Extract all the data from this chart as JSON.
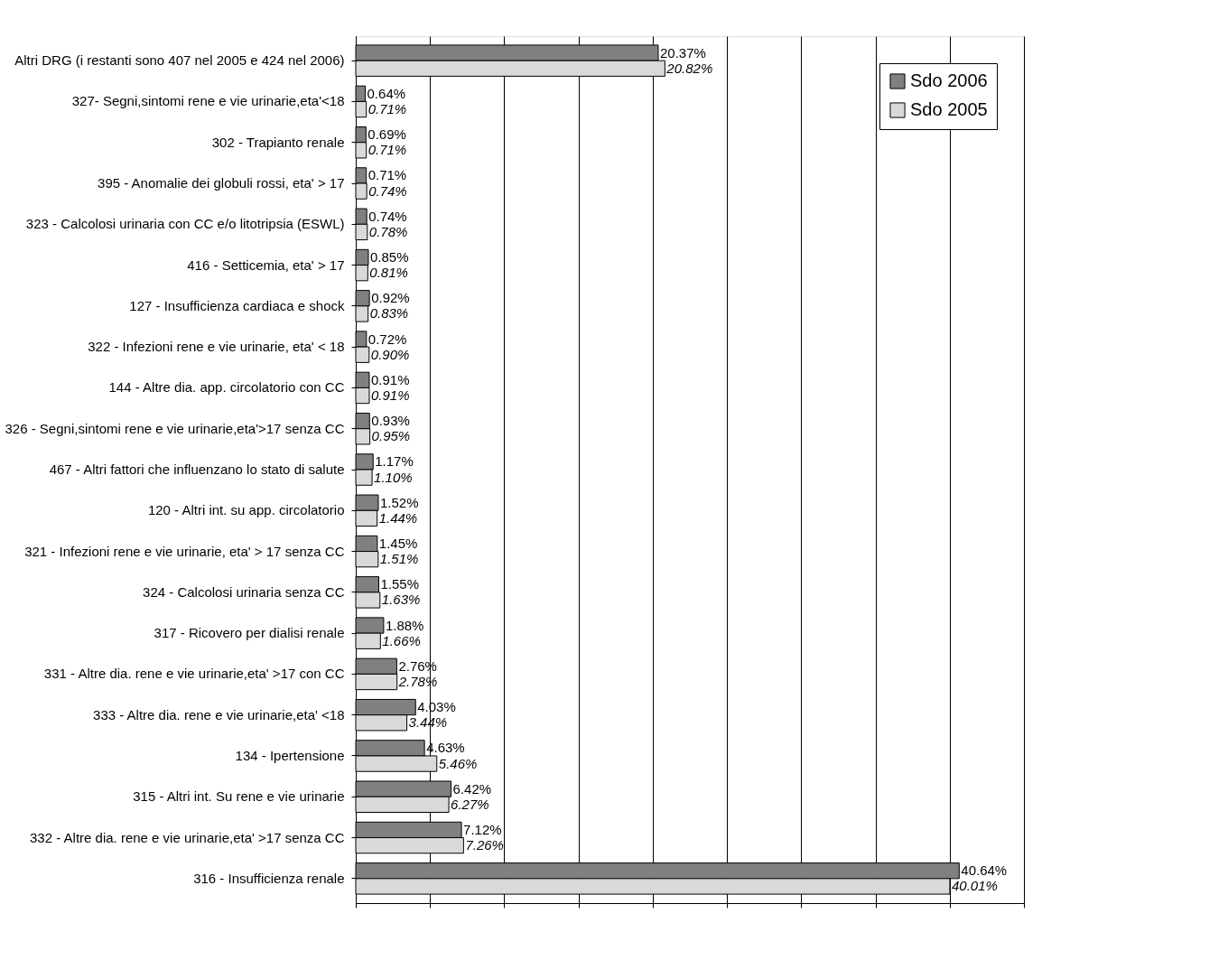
{
  "chart_data": {
    "type": "bar",
    "orientation": "horizontal",
    "categories": [
      "Altri DRG (i restanti sono 407 nel 2005 e 424 nel 2006)",
      "327- Segni,sintomi rene e vie urinarie,eta'<18",
      "302 - Trapianto renale",
      "395 - Anomalie dei globuli rossi, eta' > 17",
      "323 - Calcolosi urinaria con CC e/o litotripsia (ESWL)",
      "416 - Setticemia, eta' > 17",
      "127 - Insufficienza cardiaca e shock",
      "322 - Infezioni rene e vie urinarie, eta' < 18",
      "144 - Altre dia. app. circolatorio con CC",
      "326 - Segni,sintomi rene e vie urinarie,eta'>17 senza CC",
      "467 - Altri fattori che influenzano lo stato di salute",
      "120 - Altri int. su app. circolatorio",
      "321 - Infezioni rene e vie urinarie, eta' > 17 senza CC",
      "324 - Calcolosi urinaria senza CC",
      "317 - Ricovero per dialisi renale",
      "331 - Altre dia. rene e vie urinarie,eta' >17 con CC",
      "333 - Altre dia. rene e vie urinarie,eta' <18",
      "134 - Ipertensione",
      "315 - Altri int. Su rene e vie urinarie",
      "332 - Altre dia. rene e vie urinarie,eta' >17 senza CC",
      "316 - Insufficienza renale"
    ],
    "series": [
      {
        "name": "Sdo 2006",
        "color": "#808080",
        "values": [
          20.37,
          0.64,
          0.69,
          0.71,
          0.74,
          0.85,
          0.92,
          0.72,
          0.91,
          0.93,
          1.17,
          1.52,
          1.45,
          1.55,
          1.88,
          2.76,
          4.03,
          4.63,
          6.42,
          7.12,
          40.64
        ],
        "value_labels": [
          "20.37%",
          "0.64%",
          "0.69%",
          "0.71%",
          "0.74%",
          "0.85%",
          "0.92%",
          "0.72%",
          "0.91%",
          "0.93%",
          "1.17%",
          "1.52%",
          "1.45%",
          "1.55%",
          "1.88%",
          "2.76%",
          "4.03%",
          "4.63%",
          "6.42%",
          "7.12%",
          "40.64%"
        ]
      },
      {
        "name": "Sdo 2005",
        "color": "#d9d9d9",
        "values": [
          20.82,
          0.71,
          0.71,
          0.74,
          0.78,
          0.81,
          0.83,
          0.9,
          0.91,
          0.95,
          1.1,
          1.44,
          1.51,
          1.63,
          1.66,
          2.78,
          3.44,
          5.46,
          6.27,
          7.26,
          40.01
        ],
        "value_labels": [
          "20.82%",
          "0.71%",
          "0.71%",
          "0.74%",
          "0.78%",
          "0.81%",
          "0.83%",
          "0.90%",
          "0.91%",
          "0.95%",
          "1.10%",
          "1.44%",
          "1.51%",
          "1.63%",
          "1.66%",
          "2.78%",
          "3.44%",
          "5.46%",
          "6.27%",
          "7.26%",
          "40.01%"
        ]
      }
    ],
    "xlim": [
      0,
      45
    ],
    "xticks": [
      {
        "value": 0,
        "label": null
      },
      {
        "value": 5,
        "label": null
      },
      {
        "value": 10,
        "label": null
      },
      {
        "value": 15,
        "label": null
      },
      {
        "value": 20,
        "label": null
      },
      {
        "value": 25,
        "label": null
      },
      {
        "value": 30,
        "label": null
      },
      {
        "value": 35,
        "label": null
      },
      {
        "value": 40,
        "label": null
      },
      {
        "value": 45,
        "label": null
      }
    ],
    "grid": "x",
    "legend": "top right",
    "tick_labels": "y"
  }
}
